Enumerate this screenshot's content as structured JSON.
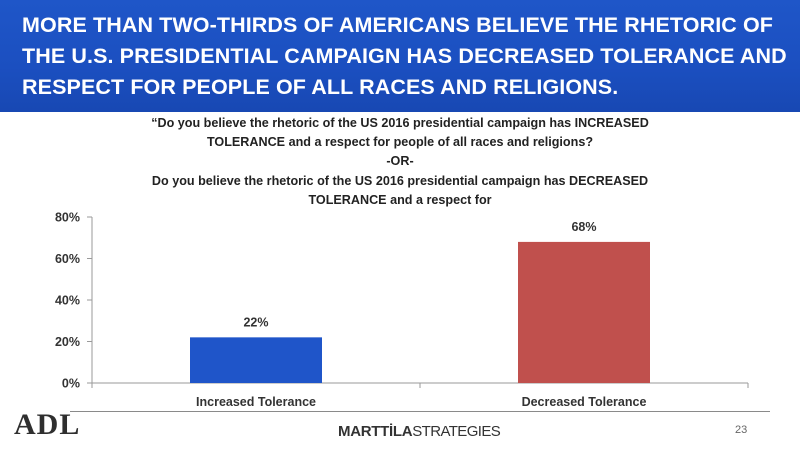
{
  "slide": {
    "title": "MORE THAN TWO-THIRDS OF AMERICANS BELIEVE THE RHETORIC OF THE U.S. PRESIDENTIAL CAMPAIGN HAS DECREASED TOLERANCE AND RESPECT FOR PEOPLE OF ALL RACES AND RELIGIONS.",
    "question_lines": [
      "“Do you believe the rhetoric of the US 2016 presidential campaign has INCREASED",
      "TOLERANCE and a respect for people of all races and religions?",
      "-OR-",
      "Do you believe the rhetoric of the US 2016 presidential campaign has DECREASED",
      "TOLERANCE and a respect for"
    ],
    "page_number": "23",
    "logo_left": "ADL",
    "logo_right_bold": "MARTTİLA",
    "logo_right_regular": "STRATEGIES",
    "colors": {
      "header_blue": "#1b4fc0",
      "increased": "#1f55c9",
      "decreased": "#c0504d"
    }
  },
  "chart_data": {
    "type": "bar",
    "categories": [
      "Increased Tolerance",
      "Decreased Tolerance"
    ],
    "values": [
      22,
      68
    ],
    "value_labels": [
      "22%",
      "68%"
    ],
    "bar_colors": [
      "#1f55c9",
      "#c0504d"
    ],
    "ylim": [
      0,
      80
    ],
    "yticks": [
      0,
      20,
      40,
      60,
      80
    ],
    "ytick_labels": [
      "0%",
      "20%",
      "40%",
      "60%",
      "80%"
    ],
    "grid": false,
    "legend": "none"
  }
}
